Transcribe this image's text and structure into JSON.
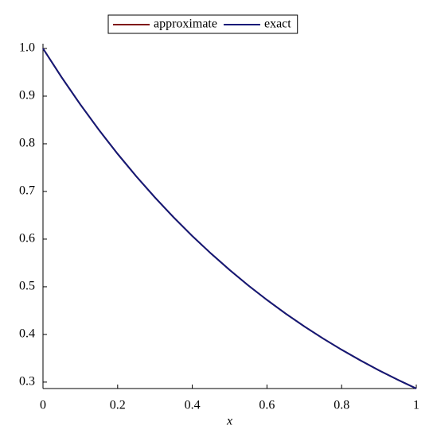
{
  "chart_data": {
    "type": "line",
    "x_label": "x",
    "x": [
      0,
      0.05,
      0.1,
      0.15,
      0.2,
      0.25,
      0.3,
      0.35,
      0.4,
      0.45,
      0.5,
      0.55,
      0.6,
      0.65,
      0.7,
      0.75,
      0.8,
      0.85,
      0.9,
      0.95,
      1
    ],
    "series": [
      {
        "name": "approximate",
        "color": "#7f1416",
        "values": [
          1,
          0.9394,
          0.8825,
          0.829,
          0.7788,
          0.7316,
          0.6873,
          0.6456,
          0.6065,
          0.5698,
          0.5353,
          0.5028,
          0.4724,
          0.4437,
          0.4169,
          0.3916,
          0.3679,
          0.3456,
          0.3247,
          0.305,
          0.2865
        ]
      },
      {
        "name": "exact",
        "color": "#131a78",
        "values": [
          1,
          0.9394,
          0.8825,
          0.829,
          0.7788,
          0.7316,
          0.6873,
          0.6456,
          0.6065,
          0.5698,
          0.5353,
          0.5028,
          0.4724,
          0.4437,
          0.4169,
          0.3916,
          0.3679,
          0.3456,
          0.3247,
          0.305,
          0.2865
        ]
      }
    ],
    "xlim": [
      0,
      1
    ],
    "xticks": [
      0,
      0.2,
      0.4,
      0.6,
      0.8,
      1
    ],
    "ylim": [
      0.2865,
      1.0
    ],
    "yticks": [
      0.3,
      0.4,
      0.5,
      0.6,
      0.7,
      0.8,
      0.9,
      {
        "value": 1.0,
        "label": "1.0"
      }
    ],
    "legend": "top"
  }
}
